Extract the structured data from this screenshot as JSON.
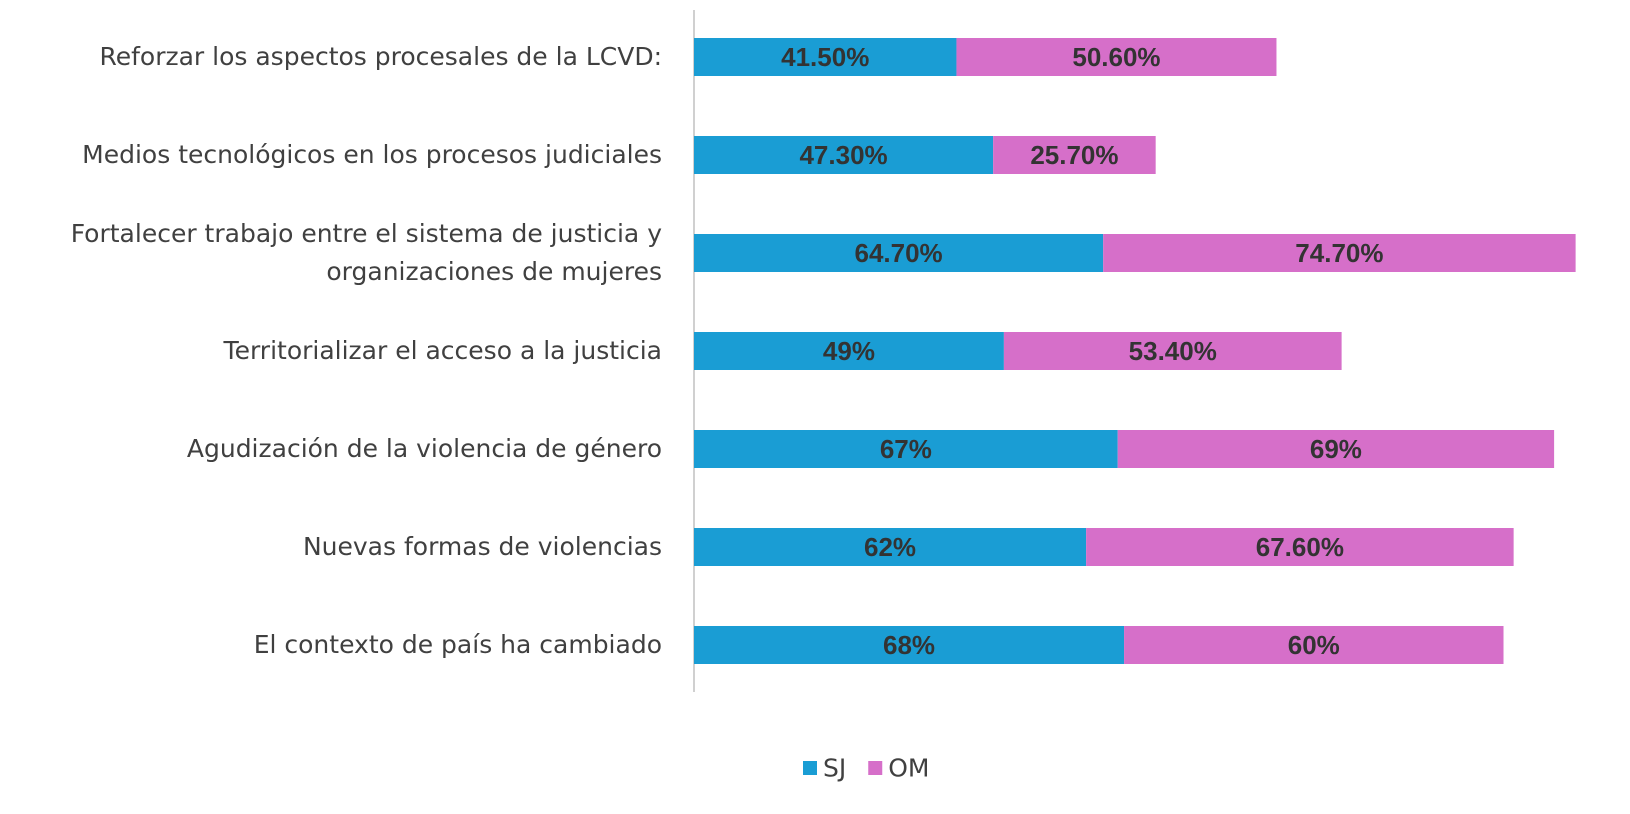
{
  "chart_data": {
    "type": "stacked-barh",
    "categories": [
      "Reforzar los aspectos procesales de la LCVD:",
      "Medios tecnológicos en los procesos judiciales",
      "Fortalecer trabajo  entre el sistema de justicia y\norganizaciones de mujeres",
      "Territorializar el acceso a la justicia",
      "Agudización de la violencia de género",
      "Nuevas formas de violencias",
      "El contexto de país ha cambiado"
    ],
    "series": [
      {
        "name": "SJ",
        "color": "#1a9dd4",
        "values": [
          41.5,
          47.3,
          64.7,
          49,
          67,
          62,
          68
        ],
        "value_labels": [
          "41.50%",
          "47.30%",
          "64.70%",
          "49%",
          "67%",
          "62%",
          "68%"
        ]
      },
      {
        "name": "OM",
        "color": "#d66fc9",
        "values": [
          50.6,
          25.7,
          74.7,
          53.4,
          69,
          67.6,
          60
        ],
        "value_labels": [
          "50.60%",
          "25.70%",
          "74.70%",
          "53.40%",
          "69%",
          "67.60%",
          "60%"
        ]
      }
    ],
    "xlim": [
      0,
      148
    ],
    "legend": "bottom"
  }
}
